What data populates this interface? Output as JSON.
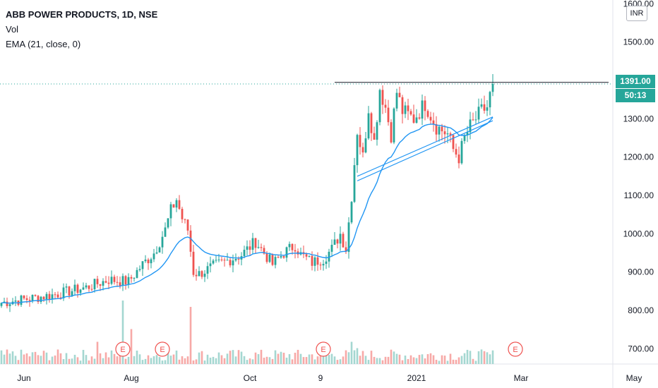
{
  "header": {
    "symbol_title": "ABB POWER PRODUCTS, 1D, NSE",
    "volume_label": "Vol",
    "ema_label": "EMA (21, close, 0)"
  },
  "currency_badge": "INR",
  "last_price": {
    "value": "1391.00",
    "countdown": "50:13"
  },
  "colors": {
    "up": "#26a69a",
    "down": "#ef5350",
    "ema": "#2196f3",
    "vol_up": "#a4d7d1",
    "vol_down": "#f7a9a7",
    "earnings": "#ef5350"
  },
  "chart_data": {
    "type": "candlestick",
    "title": "ABB POWER PRODUCTS, 1D, NSE",
    "y_axis": {
      "range": [
        660,
        1610
      ],
      "ticks": [
        "700.00",
        "800.00",
        "900.00",
        "1000.00",
        "1100.00",
        "1200.00",
        "1300.00",
        "1400.00",
        "1500.00",
        "1600.00"
      ],
      "tick_values": [
        700,
        800,
        900,
        1000,
        1100,
        1200,
        1300,
        1400,
        1500,
        1600
      ]
    },
    "x_axis": {
      "labels": [
        {
          "label": "Jun",
          "index": 8
        },
        {
          "label": "Aug",
          "index": 46
        },
        {
          "label": "Oct",
          "index": 88
        },
        {
          "label": "9",
          "index": 113
        },
        {
          "label": "2021",
          "index": 147
        },
        {
          "label": "Mar",
          "index": 184
        },
        {
          "label": "May",
          "index": 224
        }
      ],
      "total_slots": 230
    },
    "ohlc_control_points": [
      [
        0,
        820,
        0
      ],
      [
        18,
        840,
        0
      ],
      [
        30,
        860,
        0
      ],
      [
        38,
        880,
        0
      ],
      [
        45,
        875,
        0
      ],
      [
        50,
        920,
        0
      ],
      [
        54,
        950,
        0
      ],
      [
        56,
        980,
        0
      ],
      [
        58,
        1010,
        0
      ],
      [
        60,
        1060,
        0
      ],
      [
        62,
        1090,
        0
      ],
      [
        64,
        1040,
        0
      ],
      [
        66,
        1010,
        0
      ],
      [
        68,
        900,
        0
      ],
      [
        70,
        895,
        0
      ],
      [
        75,
        915,
        0
      ],
      [
        80,
        930,
        0
      ],
      [
        85,
        945,
        0
      ],
      [
        90,
        980,
        0
      ],
      [
        92,
        960,
        0
      ],
      [
        96,
        920,
        0
      ],
      [
        100,
        950,
        0
      ],
      [
        104,
        970,
        0
      ],
      [
        106,
        945,
        0
      ],
      [
        110,
        925,
        0
      ],
      [
        114,
        935,
        0
      ],
      [
        117,
        960,
        0
      ],
      [
        120,
        1000,
        0
      ],
      [
        122,
        960,
        0
      ],
      [
        124,
        1100,
        0
      ],
      [
        126,
        1270,
        0
      ],
      [
        128,
        1200,
        0
      ],
      [
        130,
        1330,
        0
      ],
      [
        132,
        1240,
        0
      ],
      [
        134,
        1380,
        0
      ],
      [
        136,
        1330,
        0
      ],
      [
        138,
        1260,
        0
      ],
      [
        140,
        1370,
        0
      ],
      [
        142,
        1320,
        0
      ],
      [
        146,
        1300,
        0
      ],
      [
        150,
        1340,
        0
      ],
      [
        154,
        1280,
        0
      ],
      [
        158,
        1260,
        0
      ],
      [
        160,
        1220,
        0
      ],
      [
        162,
        1200,
        0
      ],
      [
        164,
        1250,
        0
      ],
      [
        166,
        1280,
        0
      ],
      [
        168,
        1300,
        0
      ],
      [
        170,
        1320,
        0
      ],
      [
        172,
        1330,
        0
      ],
      [
        174,
        1391,
        0
      ]
    ],
    "ema_period": 21,
    "volume_spikes": [
      {
        "index": 34,
        "value": 0.35
      },
      {
        "index": 43,
        "value": 1.0
      },
      {
        "index": 46,
        "value": 0.55
      },
      {
        "index": 67,
        "value": 0.9
      },
      {
        "index": 124,
        "value": 0.35
      },
      {
        "index": 126,
        "value": 0.25
      }
    ],
    "earnings_markers": [
      {
        "label": "E",
        "index": 43
      },
      {
        "label": "E",
        "index": 57
      },
      {
        "label": "E",
        "index": 114
      },
      {
        "label": "E",
        "index": 182
      }
    ],
    "annotations": {
      "resistance_line": {
        "value": 1395,
        "from_index": 118,
        "to_index": 215
      },
      "trend_channel": [
        {
          "from": [
            126,
            1150
          ],
          "to": [
            174,
            1305
          ]
        },
        {
          "from": [
            126,
            1138
          ],
          "to": [
            174,
            1295
          ]
        }
      ],
      "last_price_line": 1391
    }
  }
}
